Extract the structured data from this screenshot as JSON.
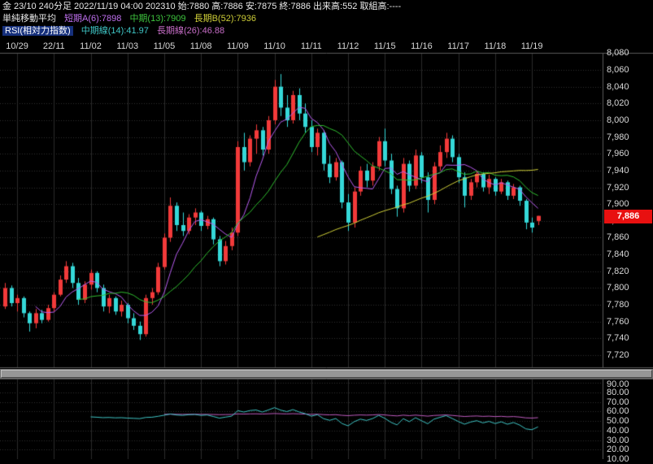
{
  "header": {
    "line1": "金 23/10 240分足 2022/11/19 04:00 202310 始:7880 高:7886 安:7875 終:7886 出来高:552 取組高:----",
    "sma": {
      "title": "単純移動平均",
      "short": "短期A(6):7898",
      "mid": "中期(13):7909",
      "long": "長期B(52):7936"
    },
    "rsi": {
      "title": "RSI(相対力指数)",
      "mid": "中期線(14):41.97",
      "long": "長期線(26):46.88"
    }
  },
  "price_badge": "7,886",
  "colors": {
    "background": "#000000",
    "up": "#f23a3a",
    "down": "#35d8d8",
    "ma_short": "#b85cf0",
    "ma_mid": "#2fbe2f",
    "ma_long": "#cfcf38",
    "rsi_mid": "#3fc6c6",
    "rsi_long": "#c05cc0",
    "grid_h": "#303030",
    "grid_v": "#2b2b2b",
    "frame": "#5a5a5a",
    "badge_bg": "#e81010",
    "axis_text": "#d8d8d8"
  },
  "chart_data": {
    "type": "candlestick",
    "title": "金 23/10 240分足",
    "summary": {
      "datetime": "2022/11/19 04:00",
      "contract": "202310",
      "open": 7880,
      "high": 7886,
      "low": 7875,
      "close": 7886,
      "volume": 552,
      "open_interest": "----"
    },
    "x_labels": [
      {
        "label": "10/29",
        "i": 2
      },
      {
        "label": "22/11",
        "i": 8
      },
      {
        "label": "11/02",
        "i": 14
      },
      {
        "label": "11/03",
        "i": 20
      },
      {
        "label": "11/05",
        "i": 26
      },
      {
        "label": "11/08",
        "i": 32
      },
      {
        "label": "11/09",
        "i": 38
      },
      {
        "label": "11/10",
        "i": 44
      },
      {
        "label": "11/11",
        "i": 50
      },
      {
        "label": "11/12",
        "i": 56
      },
      {
        "label": "11/15",
        "i": 62
      },
      {
        "label": "11/16",
        "i": 68
      },
      {
        "label": "11/17",
        "i": 74
      },
      {
        "label": "11/18",
        "i": 80
      },
      {
        "label": "11/19",
        "i": 86
      }
    ],
    "y_axis": {
      "tick_step": 20,
      "ticks": [
        8080,
        8060,
        8040,
        8020,
        8000,
        7980,
        7960,
        7940,
        7920,
        7900,
        7880,
        7860,
        7840,
        7820,
        7800,
        7780,
        7760,
        7740,
        7720
      ]
    },
    "candles": [
      [
        7778,
        7806,
        7775,
        7800
      ],
      [
        7800,
        7803,
        7778,
        7782
      ],
      [
        7782,
        7792,
        7772,
        7788
      ],
      [
        7788,
        7790,
        7765,
        7770
      ],
      [
        7770,
        7772,
        7748,
        7758
      ],
      [
        7758,
        7775,
        7752,
        7770
      ],
      [
        7770,
        7774,
        7758,
        7762
      ],
      [
        7762,
        7780,
        7760,
        7776
      ],
      [
        7776,
        7795,
        7772,
        7792
      ],
      [
        7792,
        7815,
        7790,
        7810
      ],
      [
        7810,
        7832,
        7806,
        7826
      ],
      [
        7826,
        7830,
        7800,
        7806
      ],
      [
        7806,
        7812,
        7780,
        7786
      ],
      [
        7786,
        7808,
        7782,
        7804
      ],
      [
        7804,
        7822,
        7798,
        7818
      ],
      [
        7818,
        7820,
        7795,
        7800
      ],
      [
        7800,
        7804,
        7772,
        7778
      ],
      [
        7778,
        7792,
        7770,
        7788
      ],
      [
        7788,
        7790,
        7768,
        7772
      ],
      [
        7772,
        7785,
        7766,
        7780
      ],
      [
        7780,
        7782,
        7758,
        7764
      ],
      [
        7764,
        7770,
        7750,
        7755
      ],
      [
        7755,
        7760,
        7738,
        7745
      ],
      [
        7745,
        7792,
        7742,
        7788
      ],
      [
        7788,
        7800,
        7780,
        7795
      ],
      [
        7795,
        7830,
        7792,
        7825
      ],
      [
        7825,
        7865,
        7822,
        7860
      ],
      [
        7860,
        7908,
        7855,
        7898
      ],
      [
        7898,
        7902,
        7868,
        7875
      ],
      [
        7875,
        7890,
        7862,
        7868
      ],
      [
        7868,
        7888,
        7864,
        7884
      ],
      [
        7884,
        7895,
        7875,
        7890
      ],
      [
        7890,
        7892,
        7868,
        7874
      ],
      [
        7874,
        7886,
        7870,
        7882
      ],
      [
        7882,
        7884,
        7852,
        7858
      ],
      [
        7858,
        7862,
        7826,
        7832
      ],
      [
        7832,
        7856,
        7828,
        7850
      ],
      [
        7850,
        7872,
        7845,
        7866
      ],
      [
        7866,
        7975,
        7862,
        7968
      ],
      [
        7968,
        7985,
        7940,
        7950
      ],
      [
        7950,
        7982,
        7945,
        7978
      ],
      [
        7978,
        7995,
        7960,
        7988
      ],
      [
        7988,
        7992,
        7958,
        7965
      ],
      [
        7965,
        8005,
        7960,
        8000
      ],
      [
        8000,
        8048,
        7995,
        8040
      ],
      [
        8040,
        8055,
        8005,
        8015
      ],
      [
        8015,
        8030,
        7992,
        8000
      ],
      [
        8000,
        8035,
        7996,
        8030
      ],
      [
        8030,
        8038,
        8000,
        8008
      ],
      [
        8008,
        8020,
        7985,
        7992
      ],
      [
        7992,
        8000,
        7962,
        7968
      ],
      [
        7968,
        7990,
        7958,
        7985
      ],
      [
        7985,
        7988,
        7940,
        7948
      ],
      [
        7948,
        7958,
        7925,
        7932
      ],
      [
        7932,
        7955,
        7928,
        7950
      ],
      [
        7950,
        7952,
        7895,
        7902
      ],
      [
        7902,
        7912,
        7868,
        7878
      ],
      [
        7878,
        7920,
        7872,
        7915
      ],
      [
        7915,
        7945,
        7910,
        7940
      ],
      [
        7940,
        7948,
        7920,
        7928
      ],
      [
        7928,
        7950,
        7922,
        7945
      ],
      [
        7945,
        7980,
        7940,
        7975
      ],
      [
        7975,
        7990,
        7945,
        7952
      ],
      [
        7952,
        7960,
        7912,
        7918
      ],
      [
        7918,
        7922,
        7885,
        7895
      ],
      [
        7895,
        7955,
        7890,
        7948
      ],
      [
        7948,
        7952,
        7915,
        7922
      ],
      [
        7922,
        7965,
        7918,
        7958
      ],
      [
        7958,
        7962,
        7925,
        7932
      ],
      [
        7932,
        7938,
        7890,
        7905
      ],
      [
        7905,
        7950,
        7900,
        7945
      ],
      [
        7945,
        7970,
        7940,
        7962
      ],
      [
        7962,
        7985,
        7955,
        7978
      ],
      [
        7978,
        7982,
        7950,
        7956
      ],
      [
        7956,
        7960,
        7925,
        7932
      ],
      [
        7932,
        7938,
        7896,
        7910
      ],
      [
        7910,
        7930,
        7905,
        7926
      ],
      [
        7926,
        7940,
        7920,
        7936
      ],
      [
        7936,
        7938,
        7915,
        7920
      ],
      [
        7920,
        7935,
        7912,
        7930
      ],
      [
        7930,
        7932,
        7910,
        7915
      ],
      [
        7915,
        7930,
        7912,
        7926
      ],
      [
        7926,
        7928,
        7905,
        7910
      ],
      [
        7910,
        7924,
        7906,
        7920
      ],
      [
        7920,
        7922,
        7898,
        7904
      ],
      [
        7904,
        7906,
        7870,
        7878
      ],
      [
        7878,
        7884,
        7866,
        7872
      ],
      [
        7880,
        7886,
        7875,
        7886
      ]
    ],
    "overlays": [
      {
        "name": "SMA short A",
        "period": 6,
        "value": 7898,
        "color": "#b85cf0"
      },
      {
        "name": "SMA mid",
        "period": 13,
        "value": 7909,
        "color": "#2fbe2f"
      },
      {
        "name": "SMA long B",
        "period": 52,
        "value": 7936,
        "color": "#cfcf38"
      }
    ],
    "rsi_panel": {
      "series": [
        {
          "name": "RSI mid line",
          "period": 14,
          "value": 41.97,
          "color": "#3fc6c6"
        },
        {
          "name": "RSI long line",
          "period": 26,
          "value": 46.88,
          "color": "#c05cc0"
        }
      ],
      "ticks": [
        90,
        80,
        70,
        60,
        50,
        40,
        30,
        20,
        10
      ]
    }
  }
}
